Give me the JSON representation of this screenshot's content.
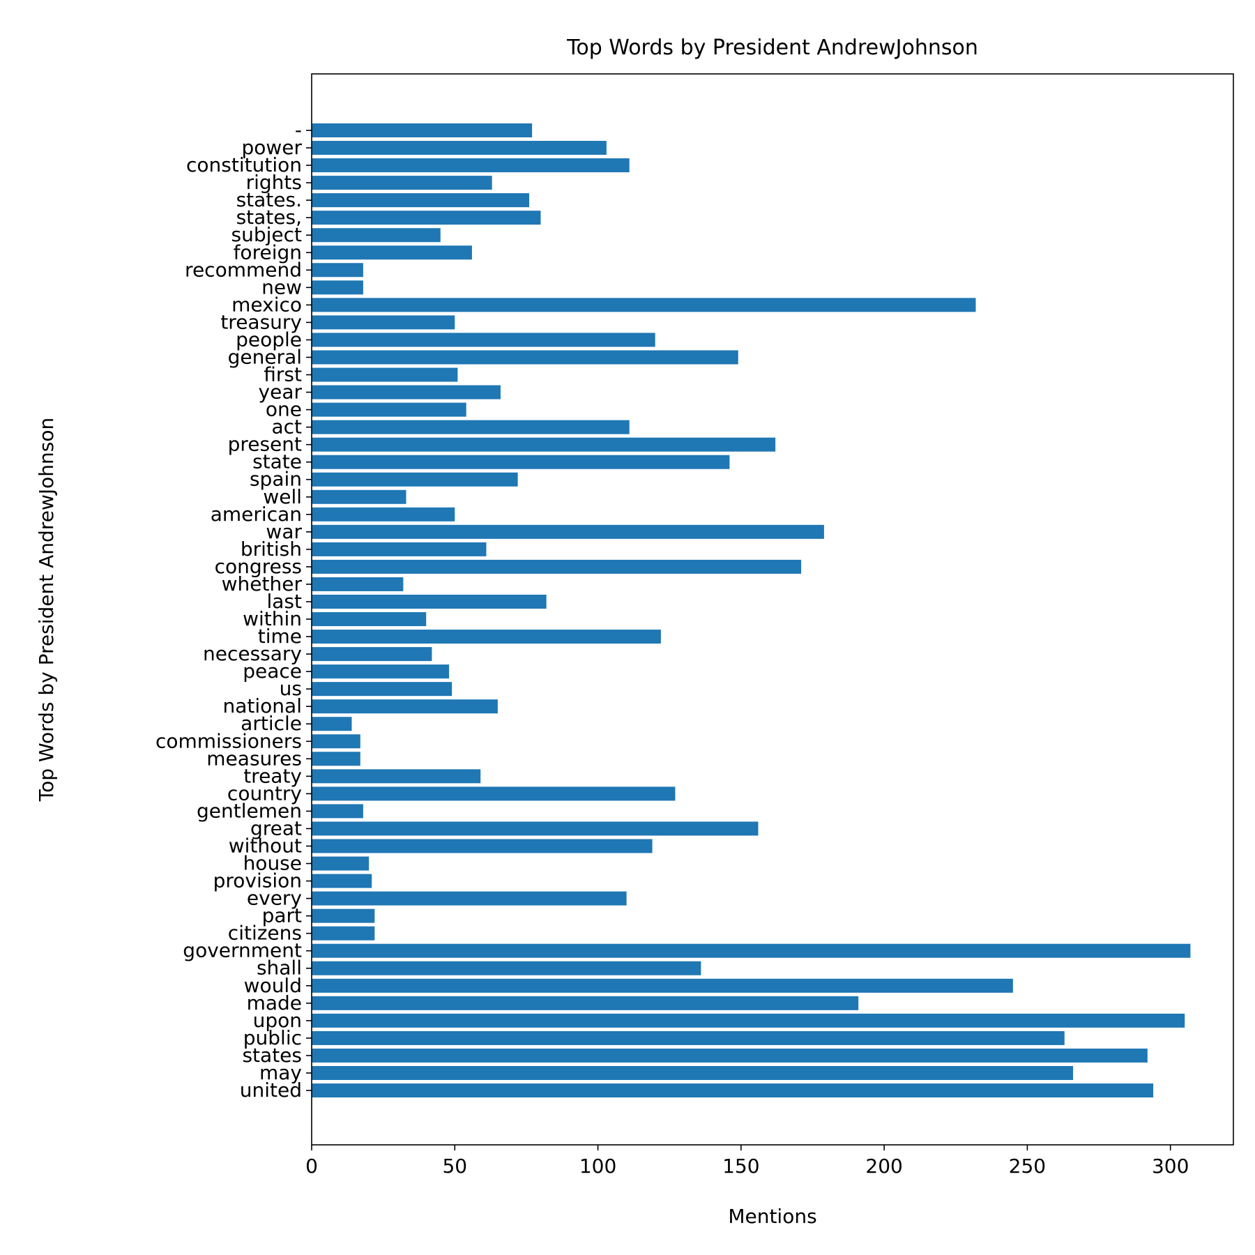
{
  "chart_data": {
    "type": "bar",
    "orientation": "horizontal",
    "title": "Top Words by President AndrewJohnson",
    "xlabel": "Mentions",
    "ylabel": "Top Words by President AndrewJohnson",
    "xlim": [
      0,
      322
    ],
    "xticks": [
      0,
      50,
      100,
      150,
      200,
      250,
      300
    ],
    "grid": false,
    "bar_color": "#1f77b4",
    "categories": [
      "united",
      "may",
      "states",
      "public",
      "upon",
      "made",
      "would",
      "shall",
      "government",
      "citizens",
      "part",
      "every",
      "provision",
      "house",
      "without",
      "great",
      "gentlemen",
      "country",
      "treaty",
      "measures",
      "commissioners",
      "article",
      "national",
      "us",
      "peace",
      "necessary",
      "time",
      "within",
      "last",
      "whether",
      "congress",
      "british",
      "war",
      "american",
      "well",
      "spain",
      "state",
      "present",
      "act",
      "one",
      "year",
      "first",
      "general",
      "people",
      "treasury",
      "mexico",
      "new",
      "recommend",
      "foreign",
      "subject",
      "states,",
      "states.",
      "rights",
      "constitution",
      "power",
      "-"
    ],
    "values": [
      294,
      266,
      292,
      263,
      305,
      191,
      245,
      136,
      307,
      22,
      22,
      110,
      21,
      20,
      119,
      156,
      18,
      127,
      59,
      17,
      17,
      14,
      65,
      49,
      48,
      42,
      122,
      40,
      82,
      32,
      171,
      61,
      179,
      50,
      33,
      72,
      146,
      162,
      111,
      54,
      66,
      51,
      149,
      120,
      50,
      232,
      18,
      18,
      56,
      45,
      80,
      76,
      63,
      111,
      103,
      77
    ]
  }
}
